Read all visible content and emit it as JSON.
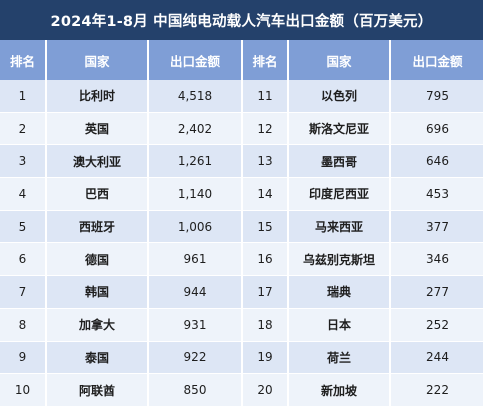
{
  "title": "2024年1-8月 中国纯电动载人汽车出口金额（百万美元）",
  "headers": [
    "排名",
    "国家",
    "出口金额",
    "排名",
    "国家",
    "出口金额"
  ],
  "chart_data": {
    "type": "table",
    "title": "2024年1-8月 中国纯电动载人汽车出口金额（百万美元）",
    "columns": [
      "排名",
      "国家",
      "出口金额"
    ],
    "rows": [
      {
        "rank": "1",
        "country": "比利时",
        "value": "4,518"
      },
      {
        "rank": "2",
        "country": "英国",
        "value": "2,402"
      },
      {
        "rank": "3",
        "country": "澳大利亚",
        "value": "1,261"
      },
      {
        "rank": "4",
        "country": "巴西",
        "value": "1,140"
      },
      {
        "rank": "5",
        "country": "西班牙",
        "value": "1,006"
      },
      {
        "rank": "6",
        "country": "德国",
        "value": "961"
      },
      {
        "rank": "7",
        "country": "韩国",
        "value": "944"
      },
      {
        "rank": "8",
        "country": "加拿大",
        "value": "931"
      },
      {
        "rank": "9",
        "country": "泰国",
        "value": "922"
      },
      {
        "rank": "10",
        "country": "阿联酋",
        "value": "850"
      },
      {
        "rank": "11",
        "country": "以色列",
        "value": "795"
      },
      {
        "rank": "12",
        "country": "斯洛文尼亚",
        "value": "696"
      },
      {
        "rank": "13",
        "country": "墨西哥",
        "value": "646"
      },
      {
        "rank": "14",
        "country": "印度尼西亚",
        "value": "453"
      },
      {
        "rank": "15",
        "country": "马来西亚",
        "value": "377"
      },
      {
        "rank": "16",
        "country": "乌兹别克斯坦",
        "value": "346"
      },
      {
        "rank": "17",
        "country": "瑞典",
        "value": "277"
      },
      {
        "rank": "18",
        "country": "日本",
        "value": "252"
      },
      {
        "rank": "19",
        "country": "荷兰",
        "value": "244"
      },
      {
        "rank": "20",
        "country": "新加坡",
        "value": "222"
      }
    ]
  },
  "colors": {
    "title_bg": "#24416b",
    "header_bg": "#7f9ed6",
    "row_odd": "#dde6f5",
    "row_even": "#eef3fa",
    "text": "#1e1e1e"
  }
}
